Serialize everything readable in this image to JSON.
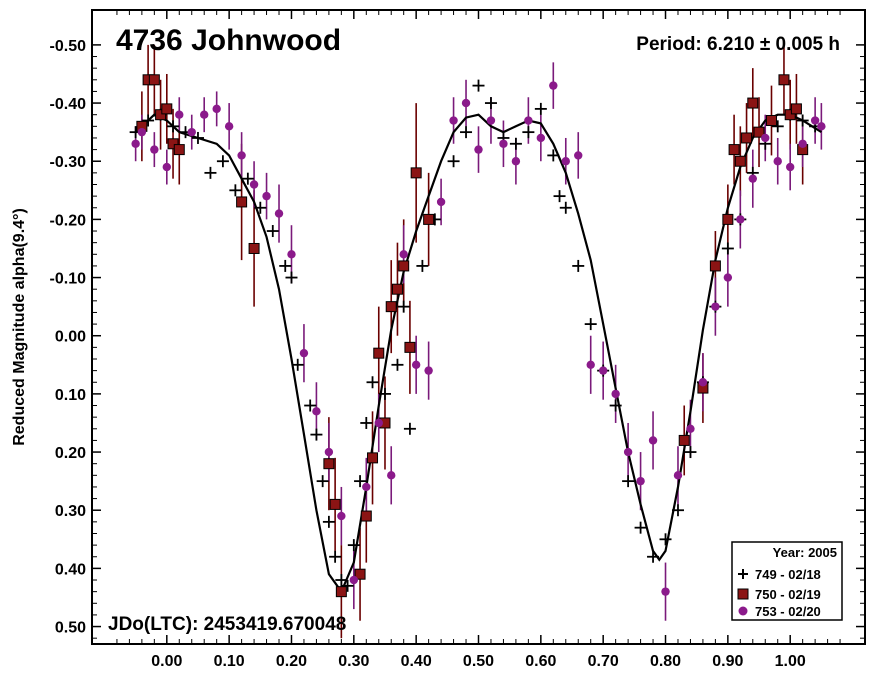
{
  "chart_data": {
    "type": "scatter",
    "title": "4736 Johnwood",
    "period_label": "Period: 6.210 ± 0.005 h",
    "jdo_label": "JDo(LTC): 2453419.670048",
    "ylabel": "Reduced Magnitude alpha(9.4°)",
    "xlabel": "",
    "xlim": [
      -0.12,
      1.12
    ],
    "ylim": [
      -0.56,
      0.53
    ],
    "y_inverted": true,
    "grid": false,
    "legend_position": "bottom-right",
    "x_ticks": [
      "0.00",
      "0.10",
      "0.20",
      "0.30",
      "0.40",
      "0.50",
      "0.60",
      "0.70",
      "0.80",
      "0.90",
      "1.00"
    ],
    "y_ticks": [
      "-0.50",
      "-0.40",
      "-0.30",
      "-0.20",
      "-0.10",
      "0.00",
      "0.10",
      "0.20",
      "0.30",
      "0.40",
      "0.50"
    ],
    "legend": {
      "title": "Year: 2005",
      "entries": [
        "749 - 02/18",
        "750 - 02/19",
        "753 - 02/20"
      ]
    },
    "colors": {
      "series_749": "#000000",
      "series_750_fill": "#8b1414",
      "series_750_edge": "#000000",
      "series_750_error": "#6a0000",
      "series_753_fill": "#8b1a8b",
      "series_753_error": "#7a1a7a"
    },
    "fit_curve": {
      "x": [
        -0.05,
        -0.02,
        0.0,
        0.02,
        0.05,
        0.08,
        0.1,
        0.12,
        0.14,
        0.16,
        0.18,
        0.2,
        0.22,
        0.24,
        0.26,
        0.28,
        0.3,
        0.32,
        0.34,
        0.36,
        0.38,
        0.4,
        0.42,
        0.44,
        0.46,
        0.48,
        0.5,
        0.52,
        0.54,
        0.56,
        0.58,
        0.6,
        0.62,
        0.64,
        0.66,
        0.68,
        0.7,
        0.72,
        0.74,
        0.76,
        0.78,
        0.79,
        0.8,
        0.82,
        0.84,
        0.86,
        0.88,
        0.9,
        0.92,
        0.94,
        0.96,
        0.98,
        1.0,
        1.02,
        1.05
      ],
      "y": [
        -0.35,
        -0.38,
        -0.37,
        -0.35,
        -0.34,
        -0.33,
        -0.31,
        -0.27,
        -0.23,
        -0.17,
        -0.08,
        0.04,
        0.17,
        0.3,
        0.41,
        0.44,
        0.39,
        0.26,
        0.12,
        -0.01,
        -0.11,
        -0.18,
        -0.24,
        -0.3,
        -0.35,
        -0.375,
        -0.38,
        -0.36,
        -0.35,
        -0.36,
        -0.37,
        -0.365,
        -0.33,
        -0.28,
        -0.21,
        -0.13,
        -0.02,
        0.09,
        0.2,
        0.29,
        0.37,
        0.385,
        0.37,
        0.26,
        0.13,
        -0.01,
        -0.13,
        -0.22,
        -0.29,
        -0.34,
        -0.37,
        -0.38,
        -0.38,
        -0.37,
        -0.35
      ]
    },
    "series": [
      {
        "name": "749 - 02/18",
        "marker": "plus",
        "x": [
          -0.05,
          -0.03,
          -0.01,
          0.01,
          0.03,
          0.05,
          0.07,
          0.09,
          0.11,
          0.13,
          0.15,
          0.17,
          0.19,
          0.2,
          0.21,
          0.23,
          0.24,
          0.25,
          0.26,
          0.27,
          0.28,
          0.29,
          0.3,
          0.31,
          0.32,
          0.33,
          0.35,
          0.37,
          0.38,
          0.39,
          0.41,
          0.43,
          0.46,
          0.48,
          0.5,
          0.52,
          0.54,
          0.56,
          0.58,
          0.6,
          0.62,
          0.63,
          0.64,
          0.66,
          0.68,
          0.7,
          0.72,
          0.74,
          0.76,
          0.78,
          0.8,
          0.82,
          0.84,
          0.86,
          0.88,
          0.9,
          0.92,
          0.94,
          0.96,
          0.98,
          1.0,
          1.02,
          1.04
        ],
        "y": [
          -0.35,
          -0.37,
          -0.38,
          -0.36,
          -0.35,
          -0.34,
          -0.28,
          -0.3,
          -0.25,
          -0.27,
          -0.22,
          -0.18,
          -0.12,
          -0.1,
          0.05,
          0.12,
          0.17,
          0.25,
          0.32,
          0.38,
          0.42,
          0.43,
          0.36,
          0.25,
          0.15,
          0.08,
          0.1,
          0.05,
          -0.05,
          0.16,
          -0.12,
          -0.2,
          -0.3,
          -0.35,
          -0.43,
          -0.4,
          -0.34,
          -0.33,
          -0.35,
          -0.39,
          -0.31,
          -0.24,
          -0.22,
          -0.12,
          -0.02,
          0.06,
          0.12,
          0.25,
          0.33,
          0.38,
          0.35,
          0.3,
          0.2,
          0.08,
          -0.05,
          -0.15,
          -0.2,
          -0.28,
          -0.33,
          -0.36,
          -0.38,
          -0.37,
          -0.36
        ],
        "err": [
          0.02,
          0.02,
          0.02,
          0.02,
          0.02,
          0.02,
          0.02,
          0.02,
          0.02,
          0.02,
          0.02,
          0.02,
          0.02,
          0.02,
          0.02,
          0.02,
          0.02,
          0.02,
          0.02,
          0.02,
          0.02,
          0.02,
          0.02,
          0.02,
          0.02,
          0.02,
          0.02,
          0.02,
          0.02,
          0.02,
          0.02,
          0.02,
          0.02,
          0.02,
          0.02,
          0.02,
          0.02,
          0.02,
          0.02,
          0.02,
          0.02,
          0.02,
          0.02,
          0.02,
          0.02,
          0.02,
          0.02,
          0.02,
          0.02,
          0.02,
          0.02,
          0.02,
          0.02,
          0.02,
          0.02,
          0.02,
          0.02,
          0.02,
          0.02,
          0.02,
          0.02,
          0.02,
          0.02
        ]
      },
      {
        "name": "750 - 02/19",
        "marker": "square",
        "x": [
          -0.04,
          -0.03,
          -0.02,
          -0.01,
          0.0,
          0.01,
          0.02,
          0.12,
          0.14,
          0.26,
          0.27,
          0.28,
          0.31,
          0.32,
          0.33,
          0.34,
          0.35,
          0.36,
          0.37,
          0.38,
          0.39,
          0.4,
          0.42,
          0.83,
          0.86,
          0.88,
          0.9,
          0.91,
          0.92,
          0.93,
          0.94,
          0.95,
          0.97,
          0.99,
          1.0,
          1.01,
          1.02
        ],
        "y": [
          -0.36,
          -0.44,
          -0.44,
          -0.38,
          -0.39,
          -0.33,
          -0.32,
          -0.23,
          -0.15,
          0.22,
          0.29,
          0.44,
          0.41,
          0.31,
          0.21,
          0.03,
          0.15,
          -0.05,
          -0.08,
          -0.12,
          0.02,
          -0.28,
          -0.2,
          0.18,
          0.09,
          -0.12,
          -0.2,
          -0.32,
          -0.3,
          -0.34,
          -0.4,
          -0.35,
          -0.37,
          -0.44,
          -0.38,
          -0.39,
          -0.32
        ],
        "err": [
          0.06,
          0.06,
          0.06,
          0.06,
          0.06,
          0.06,
          0.06,
          0.1,
          0.1,
          0.08,
          0.08,
          0.08,
          0.08,
          0.08,
          0.08,
          0.08,
          0.08,
          0.08,
          0.08,
          0.08,
          0.08,
          0.12,
          0.08,
          0.06,
          0.06,
          0.06,
          0.06,
          0.06,
          0.06,
          0.06,
          0.06,
          0.06,
          0.06,
          0.06,
          0.06,
          0.06,
          0.06
        ]
      },
      {
        "name": "753 - 02/20",
        "marker": "circle",
        "x": [
          -0.05,
          -0.04,
          -0.02,
          0.0,
          0.02,
          0.04,
          0.06,
          0.08,
          0.1,
          0.12,
          0.14,
          0.16,
          0.18,
          0.2,
          0.22,
          0.24,
          0.26,
          0.28,
          0.3,
          0.32,
          0.34,
          0.36,
          0.38,
          0.4,
          0.42,
          0.44,
          0.46,
          0.48,
          0.5,
          0.52,
          0.54,
          0.56,
          0.58,
          0.6,
          0.62,
          0.64,
          0.66,
          0.68,
          0.7,
          0.72,
          0.74,
          0.76,
          0.78,
          0.8,
          0.82,
          0.84,
          0.86,
          0.88,
          0.9,
          0.92,
          0.94,
          0.96,
          0.98,
          1.0,
          1.02,
          1.04,
          1.05
        ],
        "y": [
          -0.33,
          -0.35,
          -0.32,
          -0.29,
          -0.38,
          -0.35,
          -0.38,
          -0.39,
          -0.36,
          -0.31,
          -0.26,
          -0.24,
          -0.21,
          -0.14,
          0.03,
          0.13,
          0.2,
          0.31,
          0.42,
          0.26,
          0.15,
          0.24,
          -0.14,
          0.05,
          0.06,
          -0.23,
          -0.37,
          -0.4,
          -0.32,
          -0.37,
          -0.33,
          -0.3,
          -0.37,
          -0.34,
          -0.43,
          -0.3,
          -0.31,
          0.05,
          0.06,
          0.1,
          0.2,
          0.25,
          0.18,
          0.44,
          0.24,
          0.16,
          0.08,
          -0.05,
          -0.1,
          -0.2,
          -0.27,
          -0.34,
          -0.3,
          -0.29,
          -0.33,
          -0.37,
          -0.36
        ],
        "err": [
          0.03,
          0.03,
          0.03,
          0.03,
          0.03,
          0.03,
          0.03,
          0.03,
          0.04,
          0.04,
          0.04,
          0.04,
          0.05,
          0.05,
          0.05,
          0.05,
          0.05,
          0.05,
          0.05,
          0.05,
          0.05,
          0.05,
          0.05,
          0.05,
          0.05,
          0.04,
          0.04,
          0.04,
          0.04,
          0.04,
          0.04,
          0.04,
          0.04,
          0.04,
          0.04,
          0.04,
          0.04,
          0.05,
          0.05,
          0.05,
          0.05,
          0.05,
          0.05,
          0.05,
          0.05,
          0.05,
          0.05,
          0.05,
          0.05,
          0.05,
          0.05,
          0.04,
          0.04,
          0.04,
          0.04,
          0.04,
          0.04
        ]
      }
    ]
  }
}
